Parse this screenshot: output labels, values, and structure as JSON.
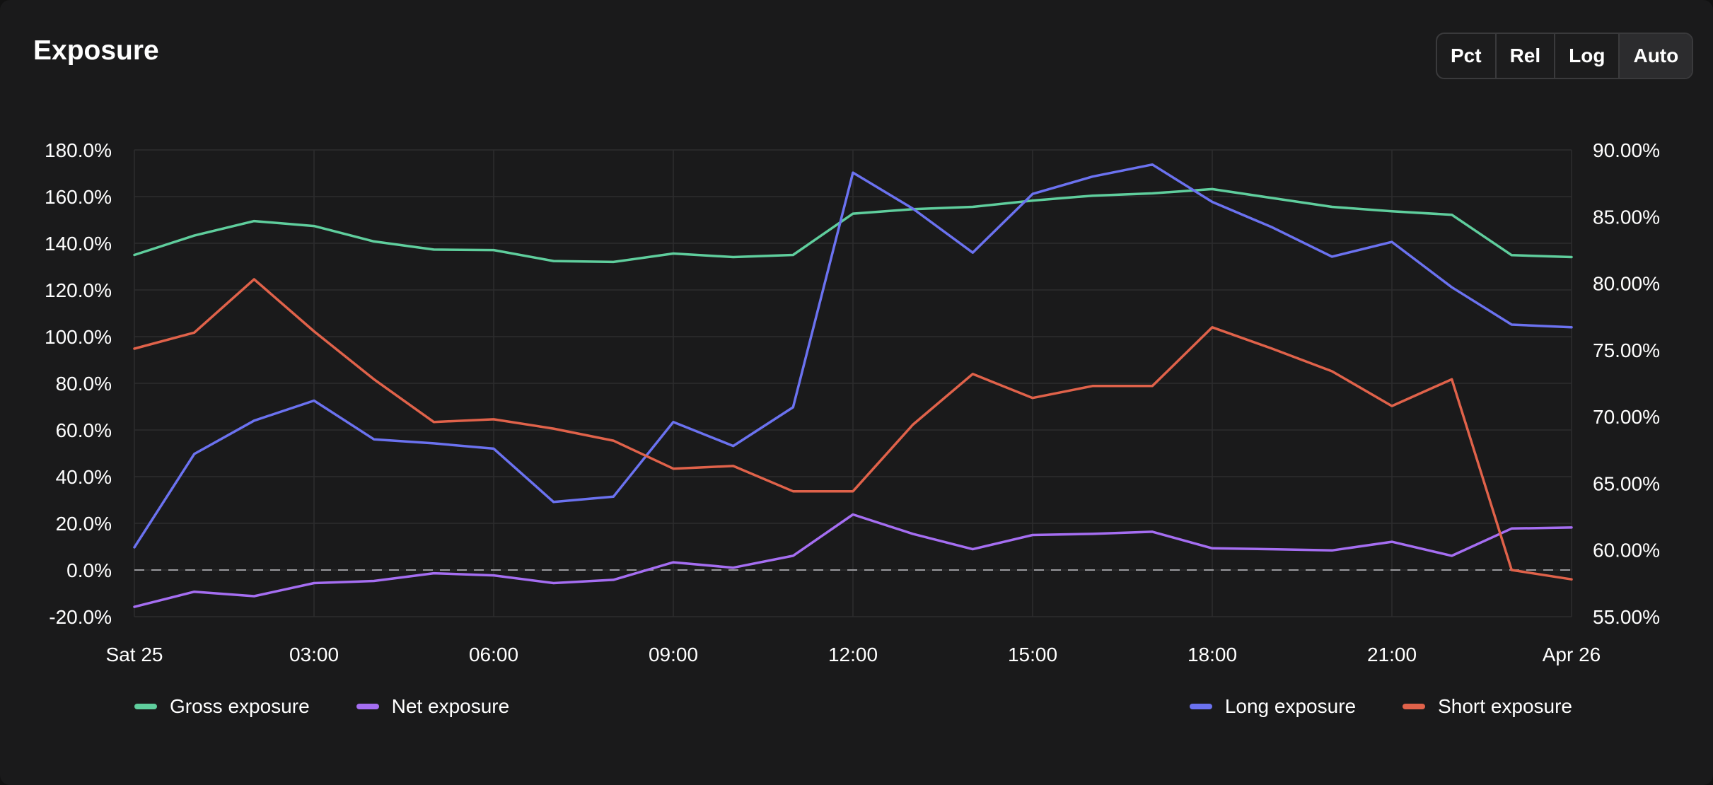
{
  "header": {
    "title": "Exposure",
    "buttons": [
      "Pct",
      "Rel",
      "Log",
      "Auto"
    ],
    "active_button": "Auto"
  },
  "legend": {
    "left": [
      {
        "label": "Gross exposure",
        "color": "#5fce9d"
      },
      {
        "label": "Net exposure",
        "color": "#a56ef2"
      }
    ],
    "right": [
      {
        "label": "Long exposure",
        "color": "#6b72f0"
      },
      {
        "label": "Short exposure",
        "color": "#e0624a"
      }
    ]
  },
  "chart_data": {
    "type": "line",
    "x_tick_labels": [
      "Sat 25",
      "03:00",
      "06:00",
      "09:00",
      "12:00",
      "15:00",
      "18:00",
      "21:00",
      "Apr 26"
    ],
    "x": [
      0,
      1,
      2,
      3,
      4,
      5,
      6,
      7,
      8,
      9,
      10,
      11,
      12,
      13,
      14,
      15,
      16,
      17,
      18,
      19,
      20,
      21,
      22,
      23,
      24
    ],
    "x_unit": "hours from Sat 25 00:00",
    "left_axis": {
      "ylim": [
        -20,
        180
      ],
      "tick_labels": [
        "180.0%",
        "160.0%",
        "140.0%",
        "120.0%",
        "100.0%",
        "80.0%",
        "60.0%",
        "40.0%",
        "20.0%",
        "0.0%",
        "-20.0%"
      ],
      "tick_values": [
        180,
        160,
        140,
        120,
        100,
        80,
        60,
        40,
        20,
        0,
        -20
      ]
    },
    "right_axis": {
      "ylim": [
        55,
        90
      ],
      "tick_labels": [
        "90.00%",
        "85.00%",
        "80.00%",
        "75.00%",
        "70.00%",
        "65.00%",
        "60.00%",
        "55.00%"
      ],
      "tick_values": [
        90,
        85,
        80,
        75,
        70,
        65,
        60,
        55
      ]
    },
    "zero_line": true,
    "grid": true,
    "series": [
      {
        "name": "Gross exposure",
        "axis": "left",
        "color": "#5fce9d",
        "values": [
          135,
          143.3,
          149.5,
          147.4,
          140.8,
          137.3,
          137.1,
          132.4,
          132,
          135.6,
          134.1,
          135,
          152.7,
          154.6,
          155.6,
          158.3,
          160.4,
          161.4,
          163.2,
          159.4,
          155.6,
          153.7,
          152.2,
          134.9,
          134.1
        ]
      },
      {
        "name": "Net exposure",
        "axis": "left",
        "color": "#a56ef2",
        "values": [
          -15.8,
          -9.3,
          -11.2,
          -5.6,
          -4.7,
          -1.4,
          -2.3,
          -5.6,
          -4.2,
          3.3,
          1,
          6.1,
          23.8,
          15.5,
          8.9,
          15,
          15.5,
          16.4,
          9.3,
          8.9,
          8.4,
          12.1,
          6.1,
          17.8,
          18.2
        ]
      },
      {
        "name": "Long exposure",
        "axis": "right",
        "color": "#6b72f0",
        "values": [
          60.2,
          67.2,
          69.7,
          71.2,
          68.3,
          68,
          67.6,
          63.6,
          64,
          69.6,
          67.8,
          70.7,
          88.3,
          85.6,
          82.3,
          86.7,
          88,
          88.9,
          86.1,
          84.2,
          82,
          83.1,
          79.7,
          76.9,
          76.7
        ]
      },
      {
        "name": "Short exposure",
        "axis": "right",
        "color": "#e0624a",
        "values": [
          75.1,
          76.3,
          80.3,
          76.4,
          72.8,
          69.6,
          69.8,
          69.1,
          68.2,
          66.1,
          66.3,
          64.4,
          64.4,
          69.4,
          73.2,
          71.4,
          72.3,
          72.3,
          76.7,
          75.1,
          73.4,
          70.8,
          72.8,
          58.5,
          57.8
        ]
      }
    ]
  }
}
